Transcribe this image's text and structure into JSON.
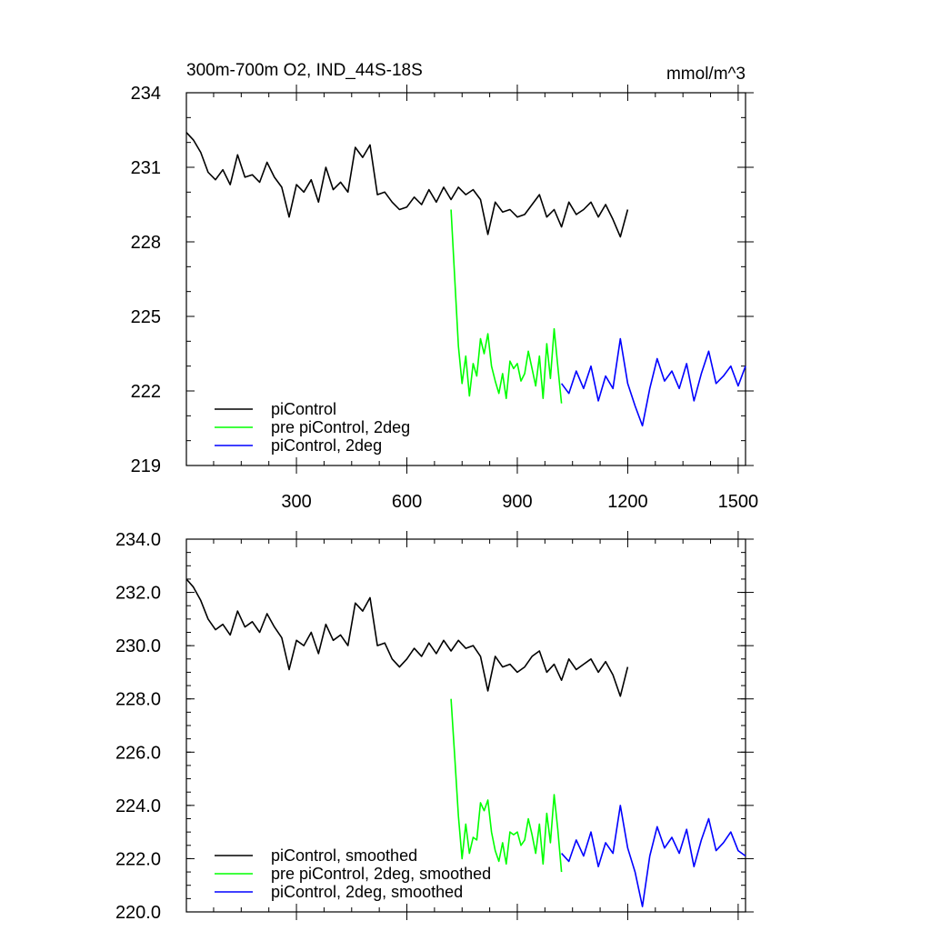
{
  "chart_data": [
    {
      "type": "line",
      "title": "300m-700m O2, IND_44S-18S",
      "units": "mmol/m^3",
      "xlim": [
        1,
        1520
      ],
      "ylim": [
        219,
        234
      ],
      "xticks": [
        300,
        600,
        900,
        1200,
        1500
      ],
      "xtick_labels": [
        "300",
        "600",
        "900",
        "1200",
        "1500"
      ],
      "yticks": [
        219,
        222,
        225,
        228,
        231,
        234
      ],
      "ytick_labels": [
        "219",
        "222",
        "225",
        "228",
        "231",
        "234"
      ],
      "legend_position": "bottom-left",
      "grid": false,
      "series": [
        {
          "name": "piControl",
          "color": "#000000",
          "x": [
            1,
            20,
            40,
            60,
            80,
            100,
            120,
            140,
            160,
            180,
            200,
            220,
            240,
            260,
            280,
            300,
            320,
            340,
            360,
            380,
            400,
            420,
            440,
            460,
            480,
            500,
            520,
            540,
            560,
            580,
            600,
            620,
            640,
            660,
            680,
            700,
            720,
            740,
            760,
            780,
            800,
            820,
            840,
            860,
            880,
            900,
            920,
            940,
            960,
            980,
            1000,
            1020,
            1040,
            1060,
            1080,
            1100,
            1120,
            1140,
            1160,
            1180,
            1200
          ],
          "values": [
            232.4,
            232.1,
            231.6,
            230.8,
            230.5,
            230.9,
            230.3,
            231.5,
            230.6,
            230.7,
            230.4,
            231.2,
            230.6,
            230.2,
            229.0,
            230.3,
            230.0,
            230.5,
            229.6,
            231.0,
            230.1,
            230.4,
            230.0,
            231.8,
            231.4,
            231.9,
            229.9,
            230.0,
            229.6,
            229.3,
            229.4,
            229.8,
            229.5,
            230.1,
            229.6,
            230.2,
            229.7,
            230.2,
            229.9,
            230.1,
            229.7,
            228.3,
            229.6,
            229.2,
            229.3,
            229.0,
            229.1,
            229.5,
            229.9,
            229.0,
            229.3,
            228.6,
            229.6,
            229.1,
            229.3,
            229.6,
            229.0,
            229.5,
            228.9,
            228.2,
            229.3
          ]
        },
        {
          "name": "pre piControl, 2deg",
          "color": "#00ff00",
          "x": [
            720,
            730,
            740,
            750,
            760,
            770,
            780,
            790,
            800,
            810,
            820,
            830,
            840,
            850,
            860,
            870,
            880,
            890,
            900,
            910,
            920,
            930,
            940,
            950,
            960,
            970,
            980,
            990,
            1000,
            1010,
            1020
          ],
          "values": [
            229.3,
            226.5,
            223.8,
            222.3,
            223.4,
            221.8,
            223.1,
            222.6,
            224.1,
            223.5,
            224.3,
            223.0,
            222.4,
            221.9,
            222.7,
            221.7,
            223.2,
            222.9,
            223.1,
            222.4,
            222.7,
            223.6,
            222.9,
            222.2,
            223.4,
            221.7,
            223.9,
            222.5,
            224.5,
            223.0,
            221.5
          ]
        },
        {
          "name": "piControl, 2deg",
          "color": "#0000ff",
          "x": [
            1020,
            1040,
            1060,
            1080,
            1100,
            1120,
            1140,
            1160,
            1180,
            1200,
            1220,
            1240,
            1260,
            1280,
            1300,
            1320,
            1340,
            1360,
            1380,
            1400,
            1420,
            1440,
            1460,
            1480,
            1500,
            1520
          ],
          "values": [
            222.3,
            221.9,
            222.8,
            222.1,
            223.0,
            221.6,
            222.6,
            222.1,
            224.1,
            222.3,
            221.4,
            220.6,
            222.1,
            223.3,
            222.4,
            222.8,
            222.1,
            223.1,
            221.6,
            222.7,
            223.6,
            222.3,
            222.6,
            223.0,
            222.2,
            223.0
          ]
        }
      ]
    },
    {
      "type": "line",
      "title": "",
      "xlim": [
        1,
        1520
      ],
      "ylim": [
        220,
        234
      ],
      "xticks": [
        300,
        600,
        900,
        1200,
        1500
      ],
      "yticks": [
        220,
        222,
        224,
        226,
        228,
        230,
        232,
        234
      ],
      "ytick_labels": [
        "220.0",
        "222.0",
        "224.0",
        "226.0",
        "228.0",
        "230.0",
        "232.0",
        "234.0"
      ],
      "legend_position": "bottom-left",
      "grid": false,
      "series": [
        {
          "name": "piControl, smoothed",
          "color": "#000000",
          "x": [
            1,
            20,
            40,
            60,
            80,
            100,
            120,
            140,
            160,
            180,
            200,
            220,
            240,
            260,
            280,
            300,
            320,
            340,
            360,
            380,
            400,
            420,
            440,
            460,
            480,
            500,
            520,
            540,
            560,
            580,
            600,
            620,
            640,
            660,
            680,
            700,
            720,
            740,
            760,
            780,
            800,
            820,
            840,
            860,
            880,
            900,
            920,
            940,
            960,
            980,
            1000,
            1020,
            1040,
            1060,
            1080,
            1100,
            1120,
            1140,
            1160,
            1180,
            1200
          ],
          "values": [
            232.5,
            232.2,
            231.7,
            231.0,
            230.6,
            230.8,
            230.4,
            231.3,
            230.7,
            230.9,
            230.5,
            231.2,
            230.7,
            230.3,
            229.1,
            230.2,
            230.0,
            230.5,
            229.7,
            230.8,
            230.2,
            230.4,
            230.0,
            231.6,
            231.3,
            231.8,
            230.0,
            230.1,
            229.5,
            229.2,
            229.5,
            229.9,
            229.6,
            230.1,
            229.7,
            230.2,
            229.8,
            230.2,
            229.9,
            230.0,
            229.6,
            228.3,
            229.6,
            229.2,
            229.3,
            229.0,
            229.2,
            229.6,
            229.8,
            229.0,
            229.3,
            228.7,
            229.5,
            229.1,
            229.3,
            229.5,
            229.0,
            229.4,
            228.9,
            228.1,
            229.2
          ]
        },
        {
          "name": "pre piControl, 2deg, smoothed",
          "color": "#00ff00",
          "x": [
            720,
            730,
            740,
            750,
            760,
            770,
            780,
            790,
            800,
            810,
            820,
            830,
            840,
            850,
            860,
            870,
            880,
            890,
            900,
            910,
            920,
            930,
            940,
            950,
            960,
            970,
            980,
            990,
            1000,
            1010,
            1020
          ],
          "values": [
            228.0,
            225.8,
            223.6,
            222.0,
            223.3,
            222.2,
            222.8,
            222.7,
            224.1,
            223.8,
            224.2,
            223.0,
            222.3,
            221.9,
            222.6,
            221.8,
            223.0,
            222.9,
            223.0,
            222.5,
            222.7,
            223.5,
            222.9,
            222.2,
            223.3,
            221.8,
            223.7,
            222.6,
            224.4,
            223.1,
            221.5
          ]
        },
        {
          "name": "piControl, 2deg, smoothed",
          "color": "#0000ff",
          "x": [
            1020,
            1040,
            1060,
            1080,
            1100,
            1120,
            1140,
            1160,
            1180,
            1200,
            1220,
            1240,
            1260,
            1280,
            1300,
            1320,
            1340,
            1360,
            1380,
            1400,
            1420,
            1440,
            1460,
            1480,
            1500,
            1520
          ],
          "values": [
            222.2,
            221.9,
            222.7,
            222.1,
            223.0,
            221.7,
            222.6,
            222.2,
            224.0,
            222.4,
            221.5,
            220.2,
            222.1,
            223.2,
            222.4,
            222.8,
            222.2,
            223.1,
            221.7,
            222.7,
            223.5,
            222.3,
            222.6,
            223.0,
            222.3,
            222.1
          ]
        }
      ]
    }
  ]
}
